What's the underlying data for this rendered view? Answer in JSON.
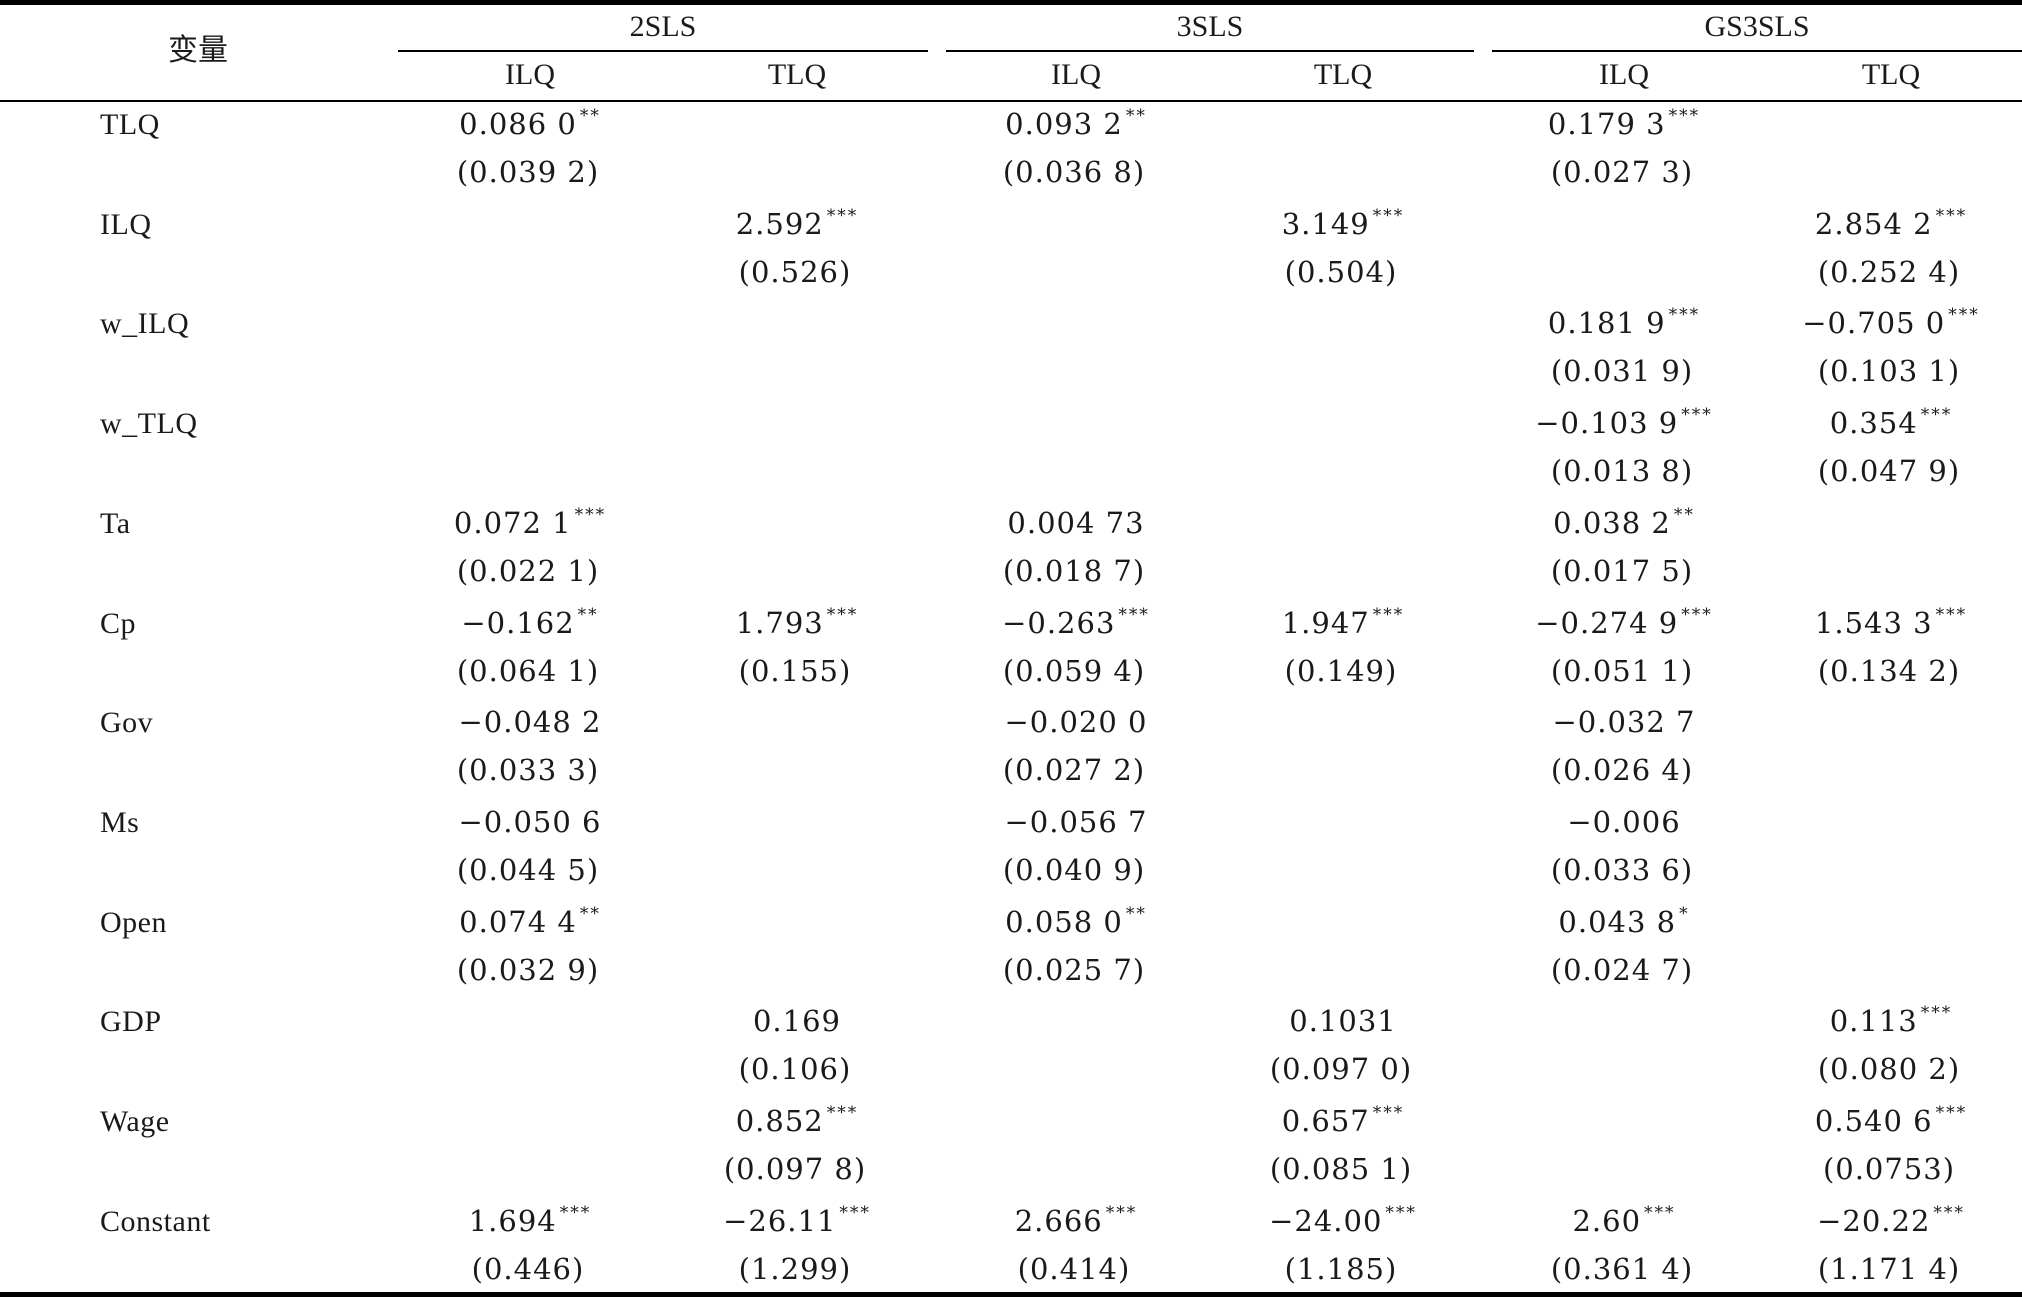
{
  "header": {
    "variable_label": "变量",
    "groups": [
      "2SLS",
      "3SLS",
      "GS3SLS"
    ],
    "columns": [
      "ILQ",
      "TLQ",
      "ILQ",
      "TLQ",
      "ILQ",
      "TLQ"
    ]
  },
  "rows": [
    {
      "name": "TLQ",
      "coef": [
        [
          "0.086 0",
          "**"
        ],
        null,
        [
          "0.093 2",
          "**"
        ],
        null,
        [
          "0.179 3",
          "***"
        ],
        null
      ],
      "se": [
        "(0.039 2)",
        null,
        "(0.036 8)",
        null,
        "(0.027 3)",
        null
      ]
    },
    {
      "name": "ILQ",
      "coef": [
        null,
        [
          "2.592",
          "***"
        ],
        null,
        [
          "3.149",
          "***"
        ],
        null,
        [
          "2.854 2",
          "***"
        ]
      ],
      "se": [
        null,
        "(0.526)",
        null,
        "(0.504)",
        null,
        "(0.252 4)"
      ]
    },
    {
      "name": "w_ILQ",
      "coef": [
        null,
        null,
        null,
        null,
        [
          "0.181 9",
          "***"
        ],
        [
          "−0.705 0",
          "***"
        ]
      ],
      "se": [
        null,
        null,
        null,
        null,
        "(0.031 9)",
        "(0.103 1)"
      ]
    },
    {
      "name": "w_TLQ",
      "coef": [
        null,
        null,
        null,
        null,
        [
          "−0.103 9",
          "***"
        ],
        [
          "0.354",
          "***"
        ]
      ],
      "se": [
        null,
        null,
        null,
        null,
        "(0.013 8)",
        "(0.047 9)"
      ]
    },
    {
      "name": "Ta",
      "coef": [
        [
          "0.072 1",
          "***"
        ],
        null,
        [
          "0.004 73",
          ""
        ],
        null,
        [
          "0.038 2",
          "**"
        ],
        null
      ],
      "se": [
        "(0.022 1)",
        null,
        "(0.018 7)",
        null,
        "(0.017 5)",
        null
      ]
    },
    {
      "name": "Cp",
      "coef": [
        [
          "−0.162",
          "**"
        ],
        [
          "1.793",
          "***"
        ],
        [
          "−0.263",
          "***"
        ],
        [
          "1.947",
          "***"
        ],
        [
          "−0.274 9",
          "***"
        ],
        [
          "1.543 3",
          "***"
        ]
      ],
      "se": [
        "(0.064 1)",
        "(0.155)",
        "(0.059 4)",
        "(0.149)",
        "(0.051 1)",
        "(0.134 2)"
      ]
    },
    {
      "name": "Gov",
      "coef": [
        [
          "−0.048 2",
          ""
        ],
        null,
        [
          "−0.020 0",
          ""
        ],
        null,
        [
          "−0.032 7",
          ""
        ],
        null
      ],
      "se": [
        "(0.033 3)",
        null,
        "(0.027 2)",
        null,
        "(0.026 4)",
        null
      ]
    },
    {
      "name": "Ms",
      "coef": [
        [
          "−0.050 6",
          ""
        ],
        null,
        [
          "−0.056 7",
          ""
        ],
        null,
        [
          "−0.006",
          ""
        ],
        null
      ],
      "se": [
        "(0.044 5)",
        null,
        "(0.040 9)",
        null,
        "(0.033 6)",
        null
      ]
    },
    {
      "name": "Open",
      "coef": [
        [
          "0.074 4",
          "**"
        ],
        null,
        [
          "0.058 0",
          "**"
        ],
        null,
        [
          "0.043 8",
          "*"
        ],
        null
      ],
      "se": [
        "(0.032 9)",
        null,
        "(0.025 7)",
        null,
        "(0.024 7)",
        null
      ]
    },
    {
      "name": "GDP",
      "coef": [
        null,
        [
          "0.169",
          ""
        ],
        null,
        [
          "0.1031",
          ""
        ],
        null,
        [
          "0.113",
          "***"
        ]
      ],
      "se": [
        null,
        "(0.106)",
        null,
        "(0.097 0)",
        null,
        "(0.080 2)"
      ]
    },
    {
      "name": "Wage",
      "coef": [
        null,
        [
          "0.852",
          "***"
        ],
        null,
        [
          "0.657",
          "***"
        ],
        null,
        [
          "0.540 6",
          "***"
        ]
      ],
      "se": [
        null,
        "(0.097 8)",
        null,
        "(0.085 1)",
        null,
        "(0.0753)"
      ]
    },
    {
      "name": "Constant",
      "coef": [
        [
          "1.694",
          "***"
        ],
        [
          "−26.11",
          "***"
        ],
        [
          "2.666",
          "***"
        ],
        [
          "−24.00",
          "***"
        ],
        [
          "2.60",
          "***"
        ],
        [
          "−20.22",
          "***"
        ]
      ],
      "se": [
        "(0.446)",
        "(1.299)",
        "(0.414)",
        "(1.185)",
        "(0.361 4)",
        "(1.171 4)"
      ]
    }
  ]
}
